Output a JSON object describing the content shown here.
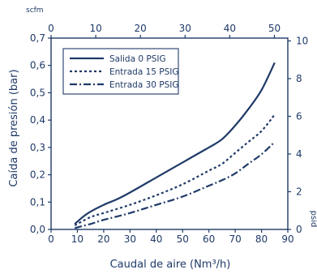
{
  "chart_data": {
    "type": "line",
    "title": "",
    "xlabel": "Caudal de aire (Nm³/h)",
    "ylabel": "Caída de presión (bar)",
    "top_axis_label": "scfm",
    "right_axis_label": "psid",
    "xlim": [
      0,
      90
    ],
    "ylim": [
      0,
      0.7
    ],
    "xticks": [
      0,
      10,
      20,
      30,
      40,
      50,
      60,
      70,
      80,
      90
    ],
    "yticks": [
      0.0,
      0.1,
      0.2,
      0.3,
      0.4,
      0.5,
      0.6,
      0.7
    ],
    "ytick_labels": [
      "0,0",
      "0,1",
      "0,2",
      "0,3",
      "0,4",
      "0,5",
      "0,6",
      "0,7"
    ],
    "top_xlim": [
      0,
      53
    ],
    "top_xticks": [
      0,
      10,
      20,
      30,
      40,
      50
    ],
    "right_ylim": [
      0,
      10.15
    ],
    "right_yticks": [
      0,
      2,
      4,
      6,
      8,
      10
    ],
    "grid": false,
    "legend_position": "top-left",
    "color": "#1f3a68",
    "series": [
      {
        "name": "Salida 0 PSIG",
        "dash": "solid",
        "x": [
          9,
          12,
          15,
          20,
          25,
          30,
          40,
          50,
          60,
          65,
          70,
          75,
          80,
          85
        ],
        "y": [
          0.02,
          0.045,
          0.065,
          0.09,
          0.11,
          0.135,
          0.19,
          0.245,
          0.3,
          0.33,
          0.38,
          0.44,
          0.51,
          0.61
        ]
      },
      {
        "name": "Entrada 15 PSIG",
        "dash": "dotted",
        "x": [
          9,
          15,
          20,
          30,
          40,
          50,
          60,
          65,
          70,
          75,
          80,
          85
        ],
        "y": [
          0.015,
          0.045,
          0.06,
          0.09,
          0.125,
          0.165,
          0.215,
          0.24,
          0.28,
          0.32,
          0.36,
          0.42
        ]
      },
      {
        "name": "Entrada 30 PSIG",
        "dash": "dashdot",
        "x": [
          9,
          15,
          20,
          30,
          40,
          50,
          60,
          65,
          70,
          75,
          80,
          85
        ],
        "y": [
          0.005,
          0.02,
          0.035,
          0.06,
          0.09,
          0.12,
          0.16,
          0.18,
          0.205,
          0.24,
          0.275,
          0.32
        ]
      }
    ]
  }
}
